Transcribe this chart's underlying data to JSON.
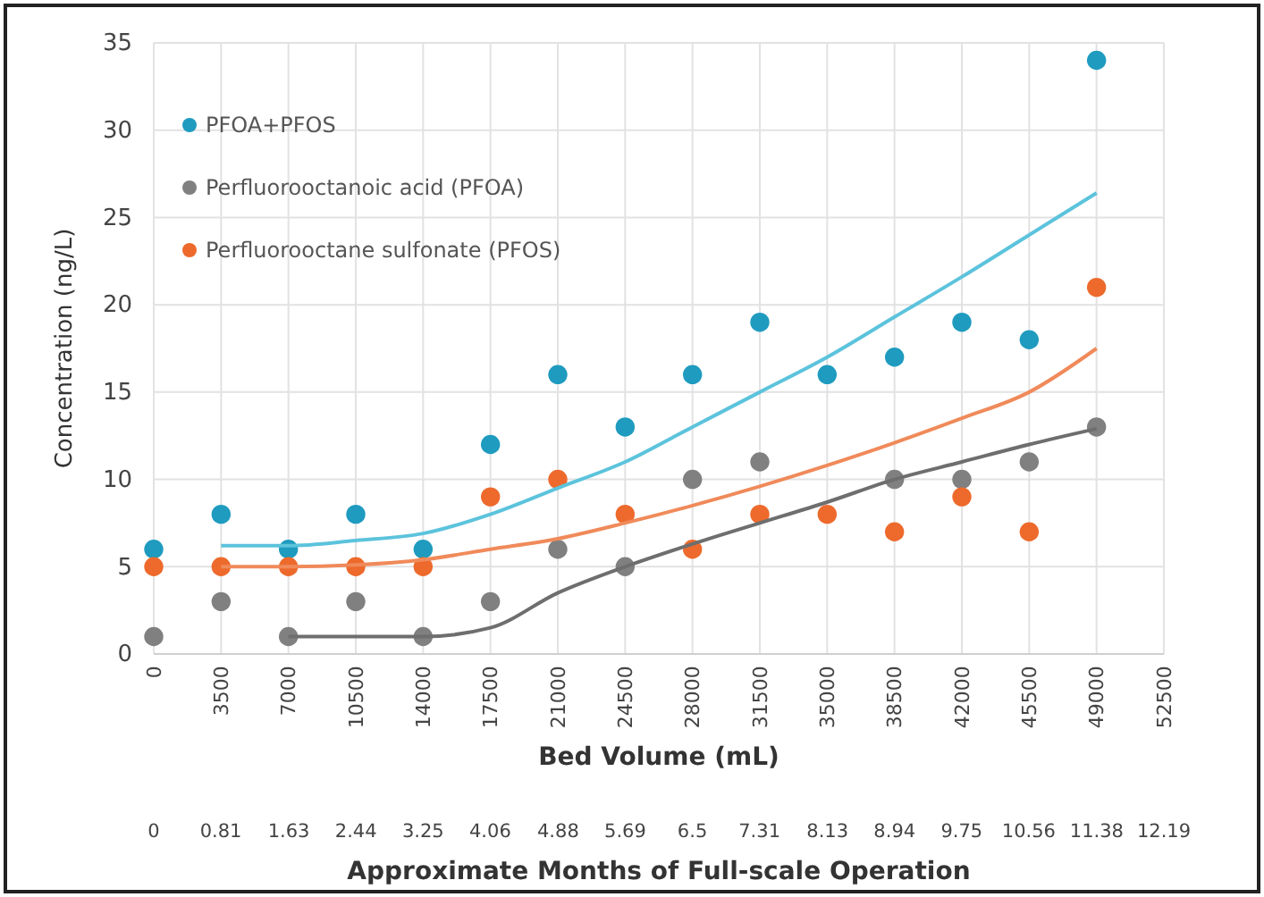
{
  "chart_data": {
    "type": "scatter",
    "xlabel": "Bed Volume (mL)",
    "x2label": "Approximate Months of Full-scale Operation",
    "ylabel": "Concentration (ng/L)",
    "xlim": [
      0,
      52500
    ],
    "xticks": [
      0,
      3500,
      7000,
      10500,
      14000,
      17500,
      21000,
      24500,
      28000,
      31500,
      35000,
      38500,
      42000,
      45500,
      49000,
      52500
    ],
    "x2lim": [
      0,
      12.19
    ],
    "x2ticks": [
      0,
      0.81,
      1.63,
      2.44,
      3.25,
      4.06,
      4.88,
      5.69,
      6.5,
      7.31,
      8.13,
      8.94,
      9.75,
      10.56,
      11.38,
      12.19
    ],
    "ylim": [
      0,
      35
    ],
    "yticks": [
      0,
      5,
      10,
      15,
      20,
      25,
      30,
      35
    ],
    "grid": true,
    "legend": "top left",
    "marker": "circle",
    "x": [
      0,
      3500,
      7000,
      10500,
      14000,
      17500,
      21000,
      24500,
      28000,
      31500,
      35000,
      38500,
      42000,
      45500,
      49000
    ],
    "series": [
      {
        "name": "PFOA+PFOS",
        "color": "#1f9bbf",
        "values": [
          6,
          8,
          6,
          8,
          6,
          12,
          16,
          13,
          16,
          19,
          16,
          17,
          19,
          18,
          34
        ]
      },
      {
        "name": "Perfluorooctanoic acid (PFOA)",
        "color": "#808080",
        "values": [
          1,
          3,
          1,
          3,
          1,
          3,
          6,
          5,
          10,
          11,
          null,
          10,
          10,
          11,
          13
        ]
      },
      {
        "name": "Perfluorooctane sulfonate (PFOS)",
        "color": "#ed6a2c",
        "values": [
          5,
          5,
          5,
          5,
          5,
          9,
          10,
          8,
          6,
          8,
          8,
          7,
          9,
          7,
          21
        ]
      },
      {
        "type": "line",
        "marker": "none",
        "color": "#5cc3dc",
        "line_style": "solid",
        "x": [
          3500,
          7000,
          10500,
          14000,
          17500,
          21000,
          24500,
          28000,
          31500,
          35000,
          38500,
          42000,
          45500,
          49000
        ],
        "values": [
          6.2,
          6.2,
          6.5,
          6.9,
          8,
          9.5,
          11,
          13,
          15,
          17,
          19.3,
          21.6,
          24,
          26.4
        ]
      },
      {
        "type": "line",
        "marker": "none",
        "color": "#f08a5a",
        "line_style": "solid",
        "x": [
          3500,
          7000,
          10500,
          14000,
          17500,
          21000,
          24500,
          28000,
          31500,
          35000,
          38500,
          42000,
          45500,
          49000
        ],
        "values": [
          5,
          5,
          5.1,
          5.4,
          6,
          6.6,
          7.5,
          8.5,
          9.6,
          10.8,
          12.1,
          13.5,
          15,
          17.5
        ]
      },
      {
        "type": "line",
        "marker": "none",
        "color": "#6e6e6e",
        "line_style": "solid",
        "x": [
          7000,
          10500,
          14000,
          17500,
          21000,
          24500,
          28000,
          31500,
          35000,
          38500,
          42000,
          45500,
          49000
        ],
        "values": [
          1,
          1,
          1,
          1.5,
          3.5,
          5,
          6.3,
          7.5,
          8.7,
          10,
          11,
          12,
          12.9
        ]
      }
    ]
  }
}
